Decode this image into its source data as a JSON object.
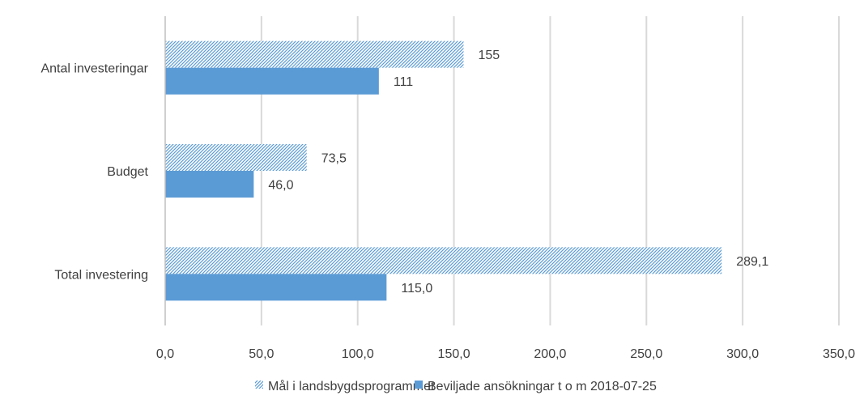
{
  "chart_data": {
    "type": "bar",
    "orientation": "horizontal",
    "categories": [
      "Antal investeringar",
      "Budget",
      "Total investering"
    ],
    "series": [
      {
        "name": "Mål i landsbygdsprogrammet",
        "values": [
          155,
          73.5,
          289.1
        ],
        "value_labels": [
          "155",
          "73,5",
          "289,1"
        ],
        "color": "#5B9BD5",
        "pattern": "diagonal-hatch"
      },
      {
        "name": "Beviljade ansökningar t o m 2018-07-25",
        "values": [
          111,
          46.0,
          115.0
        ],
        "value_labels": [
          "111",
          "46,0",
          "115,0"
        ],
        "color": "#5B9BD5",
        "pattern": "solid"
      }
    ],
    "xlim": [
      0,
      350
    ],
    "xticks": [
      0,
      50,
      100,
      150,
      200,
      250,
      300,
      350
    ],
    "xtick_labels": [
      "0,0",
      "50,0",
      "100,0",
      "150,0",
      "200,0",
      "250,0",
      "300,0",
      "350,0"
    ],
    "title": "",
    "xlabel": "",
    "ylabel": "",
    "grid": "vertical",
    "legend_position": "bottom",
    "gridline_color": "#D9D9D9",
    "axis_color": "#BFBFBF"
  }
}
